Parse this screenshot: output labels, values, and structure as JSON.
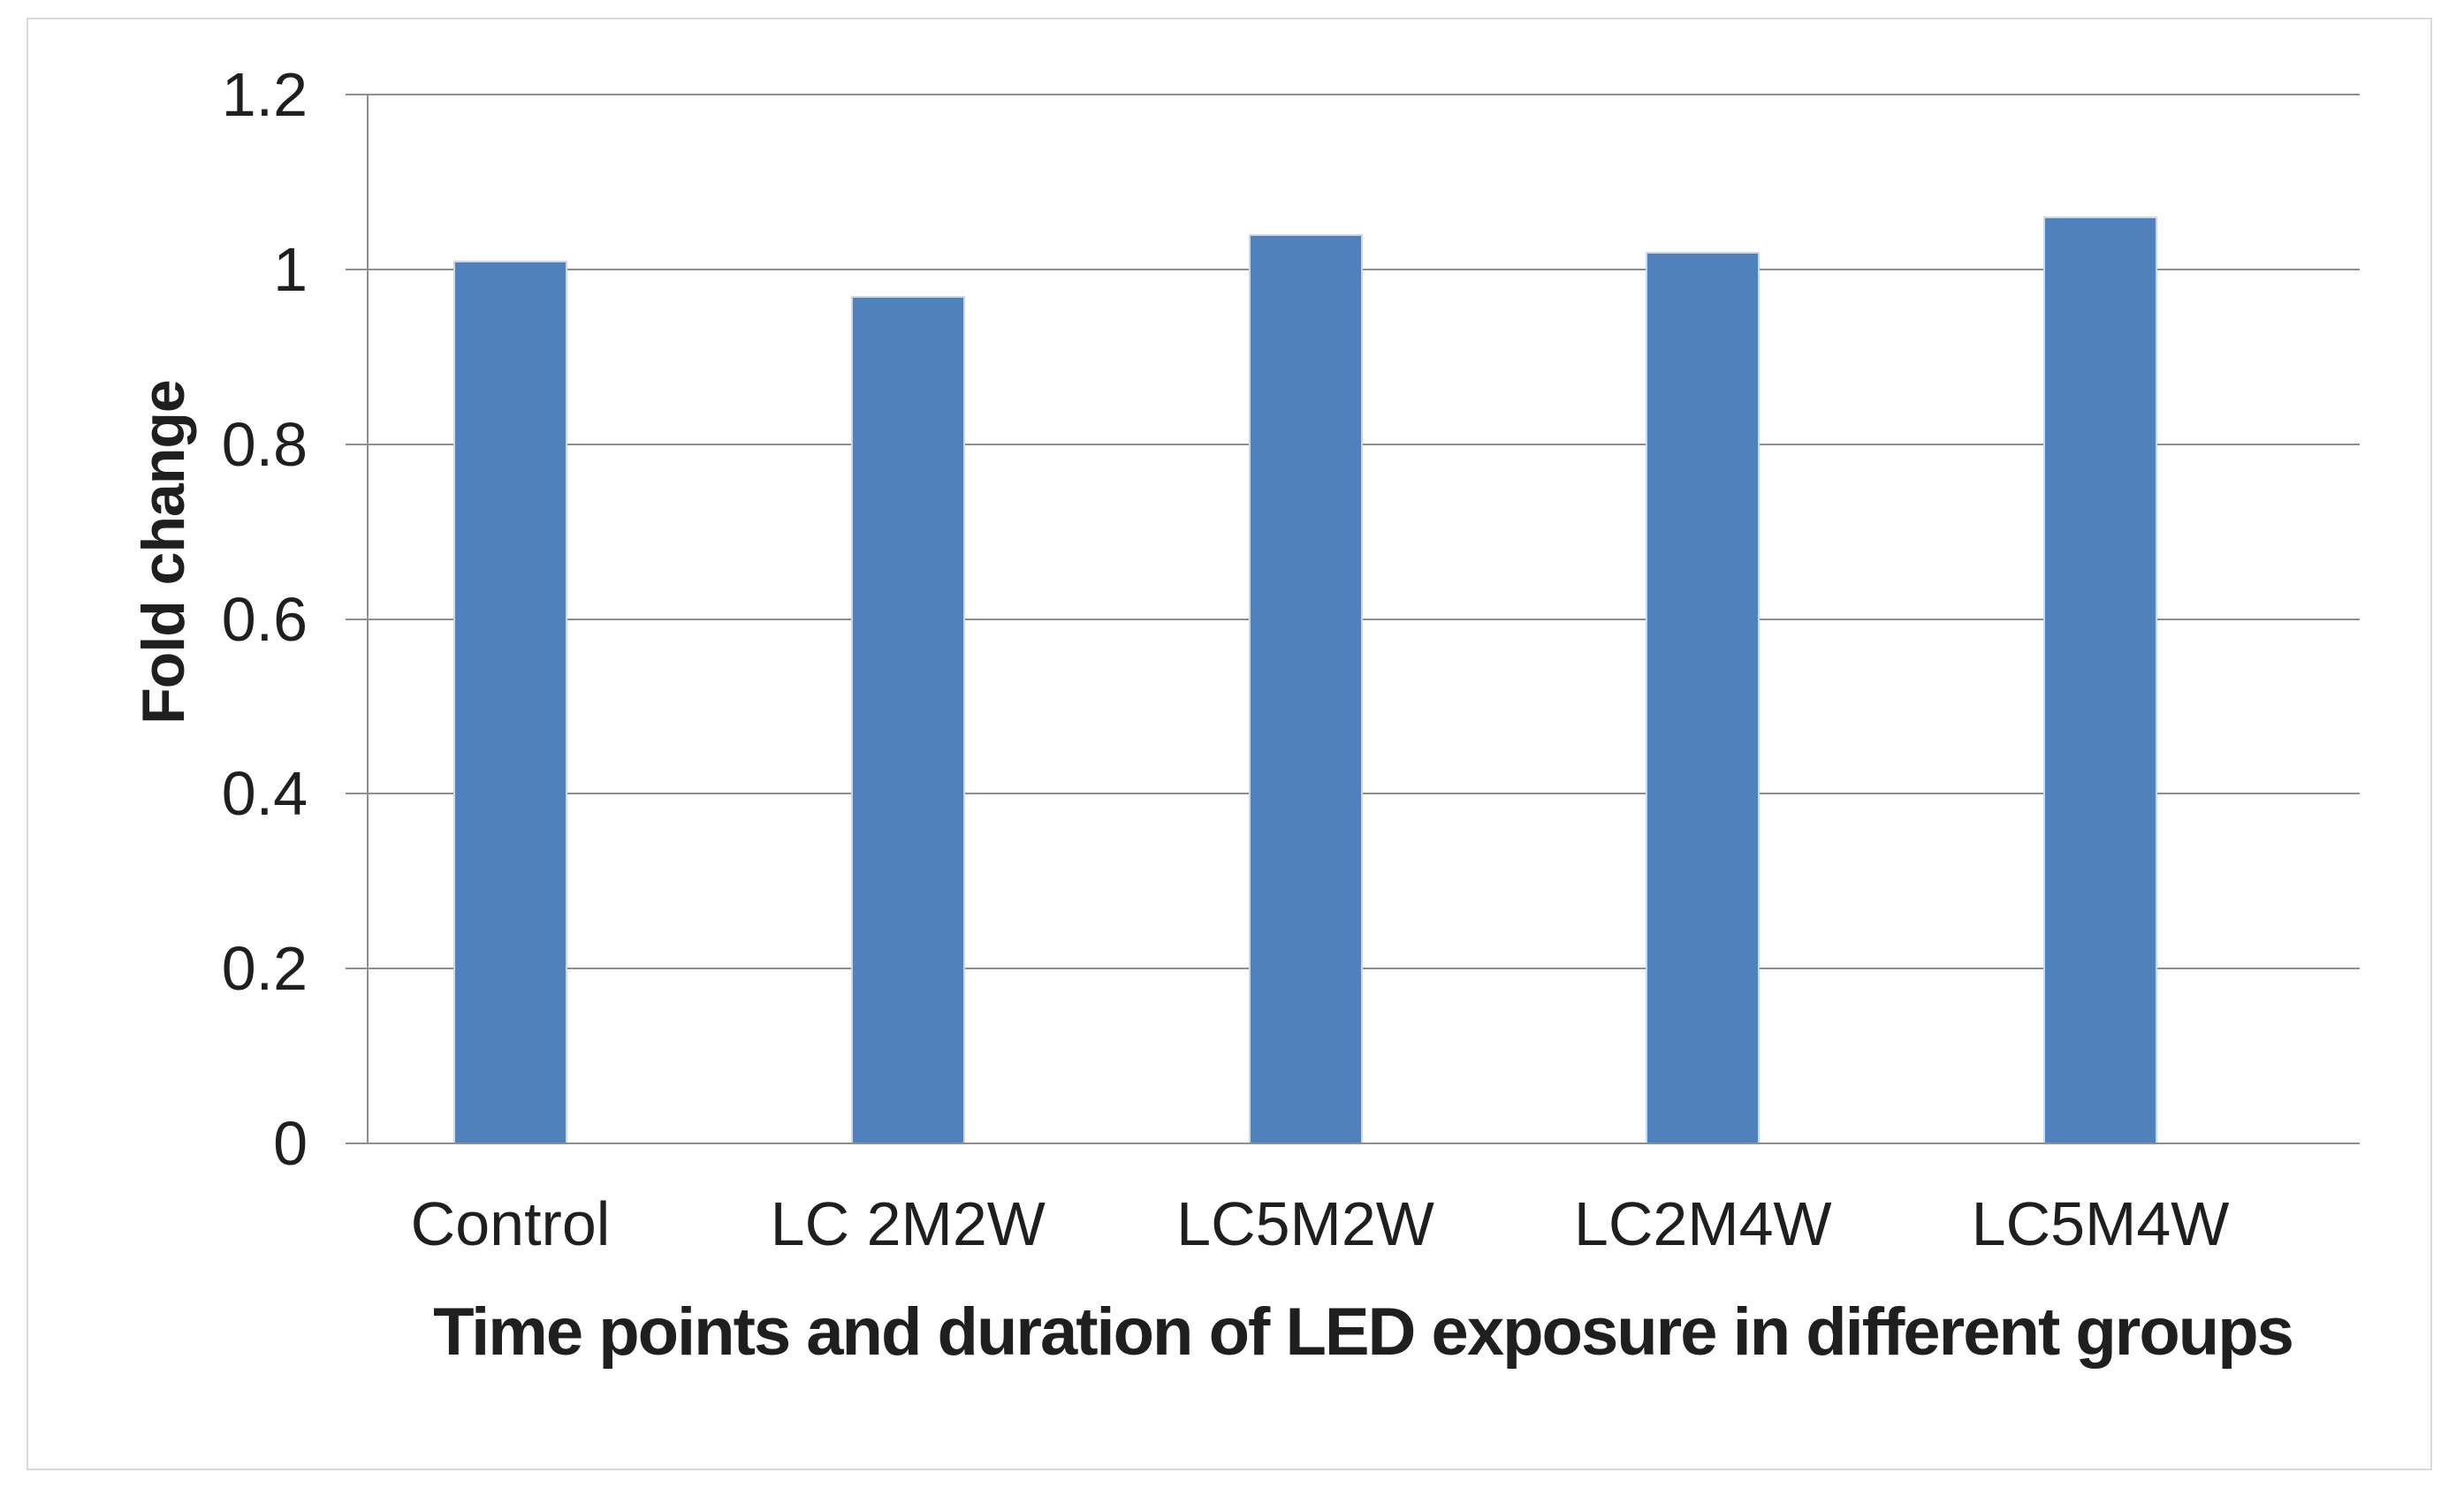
{
  "chart_data": {
    "type": "bar",
    "categories": [
      "Control",
      "LC 2M2W",
      "LC5M2W",
      "LC2M4W",
      "LC5M4W"
    ],
    "values": [
      1.01,
      0.97,
      1.04,
      1.02,
      1.06
    ],
    "title": "",
    "xlabel": "Time points and duration of LED exposure in different groups",
    "ylabel": "Fold change",
    "ylim": [
      0,
      1.2
    ],
    "ytick_step": 0.2,
    "ytick_labels": [
      "0",
      "0.2",
      "0.4",
      "0.6",
      "0.8",
      "1",
      "1.2"
    ],
    "grid": true,
    "legend_position": "none",
    "colors": {
      "bar_fill": "#4F81BD",
      "bar_edge": "#C9D8EC",
      "gridline": "#8E8E8E",
      "axis_line": "#8E8E8E",
      "frame_border": "#D9D9D9",
      "text": "#1F1F1F",
      "background": "#FFFFFF"
    }
  }
}
